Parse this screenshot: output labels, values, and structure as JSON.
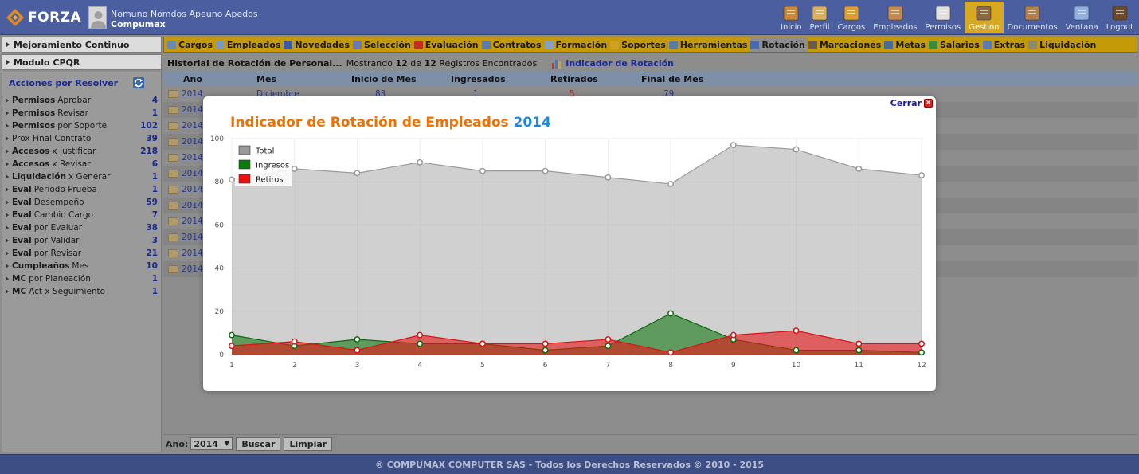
{
  "header": {
    "logo_text": "FORZA",
    "user_name": "Nomuno Nomdos Apeuno Apedos",
    "company": "Compumax",
    "nav": [
      {
        "label": "Inicio",
        "icon": "home-icon",
        "color": "#c98a3a"
      },
      {
        "label": "Perfil",
        "icon": "profile-icon",
        "color": "#d9b060"
      },
      {
        "label": "Cargos",
        "icon": "org-chart-icon",
        "color": "#d9a030"
      },
      {
        "label": "Empleados",
        "icon": "employees-icon",
        "color": "#c08a50"
      },
      {
        "label": "Permisos",
        "icon": "calendar-icon",
        "color": "#e0e0e0"
      },
      {
        "label": "Gestión",
        "icon": "management-icon",
        "color": "#8a6a40",
        "active": true
      },
      {
        "label": "Documentos",
        "icon": "documents-icon",
        "color": "#b08050"
      },
      {
        "label": "Ventana",
        "icon": "window-icon",
        "color": "#8fb0e0"
      },
      {
        "label": "Logout",
        "icon": "logout-icon",
        "color": "#6a4a2a"
      }
    ]
  },
  "sidebar": {
    "sections": [
      "Mejoramiento Continuo",
      "Modulo CPQR"
    ],
    "acciones_title": "Acciones por Resolver",
    "items": [
      {
        "bold": "Permisos",
        "rest": "Aprobar",
        "count": "4"
      },
      {
        "bold": "Permisos",
        "rest": "Revisar",
        "count": "1"
      },
      {
        "bold": "Permisos",
        "rest": "por Soporte",
        "count": "102"
      },
      {
        "bold": "",
        "rest": "Prox Final Contrato",
        "count": "39"
      },
      {
        "bold": "Accesos",
        "rest": "x Justificar",
        "count": "218"
      },
      {
        "bold": "Accesos",
        "rest": "x Revisar",
        "count": "6"
      },
      {
        "bold": "Liquidación",
        "rest": "x Generar",
        "count": "1"
      },
      {
        "bold": "Eval",
        "rest": "Periodo Prueba",
        "count": "1"
      },
      {
        "bold": "Eval",
        "rest": "Desempeño",
        "count": "59"
      },
      {
        "bold": "Eval",
        "rest": "Cambio Cargo",
        "count": "7"
      },
      {
        "bold": "Eval",
        "rest": "por Evaluar",
        "count": "38"
      },
      {
        "bold": "Eval",
        "rest": "por Validar",
        "count": "3"
      },
      {
        "bold": "Eval",
        "rest": "por Revisar",
        "count": "21"
      },
      {
        "bold": "Cumpleaños",
        "rest": "Mes",
        "count": "10"
      },
      {
        "bold": "MC",
        "rest": "por Planeación",
        "count": "1"
      },
      {
        "bold": "MC",
        "rest": "Act x Seguimiento",
        "count": "1"
      }
    ]
  },
  "modules": [
    {
      "label": "Cargos",
      "color": "#6a8ab0"
    },
    {
      "label": "Empleados",
      "color": "#7a9ac0"
    },
    {
      "label": "Novedades",
      "color": "#3a5aa0"
    },
    {
      "label": "Selección",
      "color": "#6a7ab0"
    },
    {
      "label": "Evaluación",
      "color": "#c03020"
    },
    {
      "label": "Contratos",
      "color": "#5a7ab0"
    },
    {
      "label": "Formación",
      "color": "#8aa0c0"
    },
    {
      "label": "Soportes",
      "color": "#d0a020"
    },
    {
      "label": "Herramientas",
      "color": "#5a7aa0"
    },
    {
      "label": "Rotación",
      "color": "#4a6ab0",
      "active": true
    },
    {
      "label": "Marcaciones",
      "color": "#6a5a4a"
    },
    {
      "label": "Metas",
      "color": "#4a6a9a"
    },
    {
      "label": "Salarios",
      "color": "#3a8a3a"
    },
    {
      "label": "Extras",
      "color": "#5a7ab0"
    },
    {
      "label": "Liquidación",
      "color": "#8a8a70"
    }
  ],
  "info": {
    "title": "Historial de Rotación de Personal...",
    "showing": "Mostrando",
    "count": "12",
    "of": "de",
    "total": "12",
    "found": "Registros Encontrados",
    "link": "Indicador de Rotación"
  },
  "table": {
    "headers": [
      "Año",
      "Mes",
      "Inicio de Mes",
      "Ingresados",
      "Retirados",
      "Final de Mes"
    ],
    "rows": [
      {
        "year": "2014",
        "month": "Diciembre",
        "start": "83",
        "in": "1",
        "out": "5",
        "end": "79"
      },
      {
        "year": "2014"
      },
      {
        "year": "2014"
      },
      {
        "year": "2014"
      },
      {
        "year": "2014"
      },
      {
        "year": "2014"
      },
      {
        "year": "2014"
      },
      {
        "year": "2014"
      },
      {
        "year": "2014"
      },
      {
        "year": "2014"
      },
      {
        "year": "2014"
      },
      {
        "year": "2014"
      }
    ]
  },
  "filter": {
    "label": "Año:",
    "year": "2014",
    "search": "Buscar",
    "clear": "Limpiar"
  },
  "footer": "® COMPUMAX COMPUTER SAS - Todos los Derechos Reservados © 2010 - 2015",
  "modal": {
    "close": "Cerrar",
    "title": "Indicador de Rotación de Empleados",
    "title_year": "2014"
  },
  "chart_data": {
    "type": "area",
    "title": "Indicador de Rotación de Empleados 2014",
    "x": [
      1,
      2,
      3,
      4,
      5,
      6,
      7,
      8,
      9,
      10,
      11,
      12
    ],
    "ylim": [
      0,
      100
    ],
    "yticks": [
      0,
      20,
      40,
      60,
      80,
      100
    ],
    "grid": true,
    "legend_position": "top-left",
    "series": [
      {
        "name": "Total",
        "color": "#9a9a9a",
        "values": [
          81,
          86,
          84,
          89,
          85,
          85,
          82,
          79,
          97,
          95,
          86,
          83
        ]
      },
      {
        "name": "Ingresos",
        "color": "#0a7a0a",
        "values": [
          9,
          4,
          7,
          5,
          5,
          2,
          4,
          19,
          7,
          2,
          2,
          1
        ]
      },
      {
        "name": "Retiros",
        "color": "#ee1111",
        "values": [
          4,
          6,
          2,
          9,
          5,
          5,
          7,
          1,
          9,
          11,
          5,
          5
        ]
      }
    ]
  }
}
